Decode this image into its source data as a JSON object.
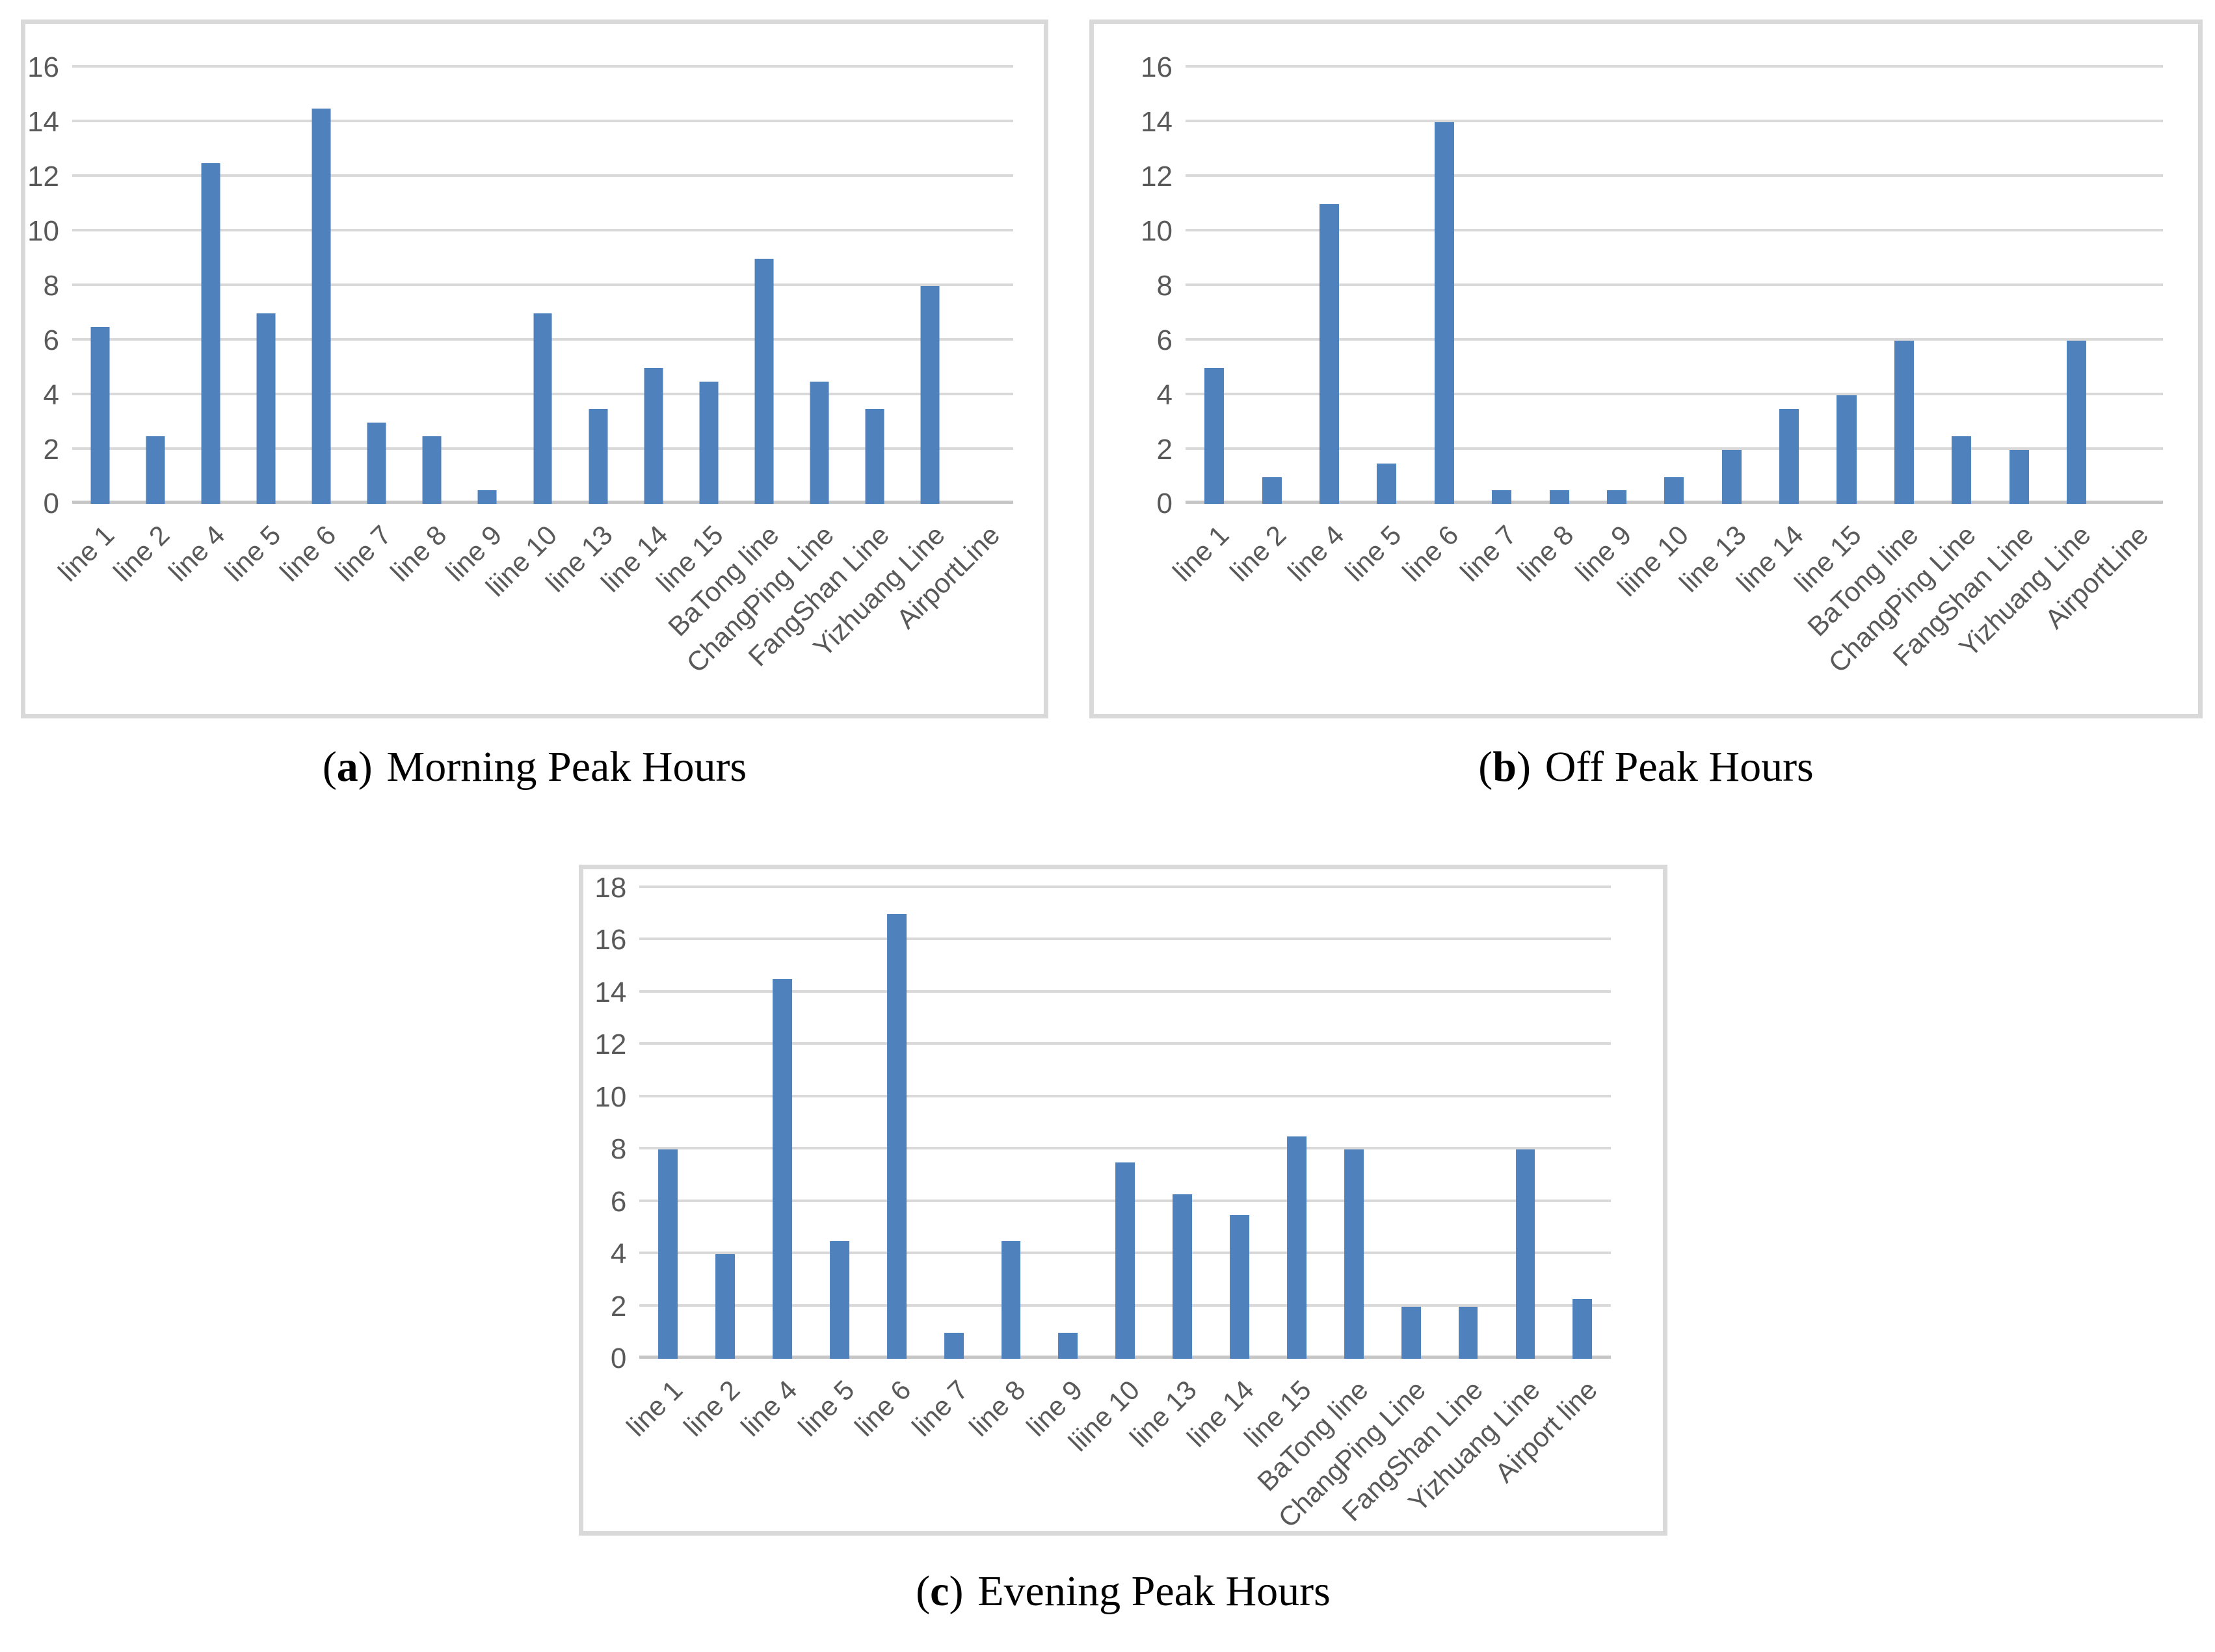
{
  "figure": {
    "colors": {
      "bar": "#4F81BD",
      "grid": "#D9D9D9",
      "axis_line": "#C6C6C6",
      "tick_label": "#595959",
      "panel_border": "#D9D9D9",
      "caption_text": "#000000"
    },
    "captions": [
      {
        "open": "(",
        "letter": "a",
        "close": ")",
        "text": "Morning Peak Hours"
      },
      {
        "open": "(",
        "letter": "b",
        "close": ")",
        "text": "Off Peak Hours"
      },
      {
        "open": "(",
        "letter": "c",
        "close": ")",
        "text": "Evening Peak Hours"
      }
    ]
  },
  "chart_data": [
    {
      "type": "bar",
      "title": "(a) Morning Peak Hours",
      "categories": [
        "line 1",
        "line 2",
        "line 4",
        "line 5",
        "line 6",
        "line 7",
        "line 8",
        "line 9",
        "liine 10",
        "line 13",
        "line 14",
        "line 15",
        "BaTong line",
        "ChangPing Line",
        "FangShan Line",
        "Yizhuang Line",
        "AirportLine"
      ],
      "values": [
        6.5,
        2.5,
        12.5,
        7,
        14.5,
        3,
        2.5,
        0.5,
        7,
        3.5,
        5,
        4.5,
        9,
        4.5,
        3.5,
        8,
        0
      ],
      "xlabel": "",
      "ylabel": "",
      "ylim": [
        0,
        16
      ],
      "ytick_step": 2,
      "grid": true,
      "legend": "none",
      "bar_color": "#4F81BD",
      "bar_width_frac": 0.34
    },
    {
      "type": "bar",
      "title": "(b) Off Peak Hours",
      "categories": [
        "line 1",
        "line 2",
        "line 4",
        "line 5",
        "line 6",
        "line 7",
        "line 8",
        "line 9",
        "liine 10",
        "line 13",
        "line 14",
        "line 15",
        "BaTong line",
        "ChangPing Line",
        "FangShan Line",
        "Yizhuang Line",
        "AirportLine"
      ],
      "values": [
        5,
        1,
        11,
        1.5,
        14,
        0.5,
        0.5,
        0.5,
        1,
        2,
        3.5,
        4,
        6,
        2.5,
        2,
        6,
        0
      ],
      "xlabel": "",
      "ylabel": "",
      "ylim": [
        0,
        16
      ],
      "ytick_step": 2,
      "grid": true,
      "legend": "none",
      "bar_color": "#4F81BD",
      "bar_width_frac": 0.34
    },
    {
      "type": "bar",
      "title": "(c) Evening Peak Hours",
      "categories": [
        "line 1",
        "line 2",
        "line 4",
        "line 5",
        "line 6",
        "line 7",
        "line 8",
        "line 9",
        "liine 10",
        "line 13",
        "line 14",
        "line 15",
        "BaTong line",
        "ChangPing Line",
        "FangShan Line",
        "Yizhuang Line",
        "Airport line"
      ],
      "values": [
        8,
        4,
        14.5,
        4.5,
        17,
        1,
        4.5,
        1,
        7.5,
        6.3,
        5.5,
        8.5,
        8,
        2,
        2,
        8,
        2.3
      ],
      "xlabel": "",
      "ylabel": "",
      "ylim": [
        0,
        18
      ],
      "ytick_step": 2,
      "grid": true,
      "legend": "none",
      "bar_color": "#4F81BD",
      "bar_width_frac": 0.34
    }
  ]
}
